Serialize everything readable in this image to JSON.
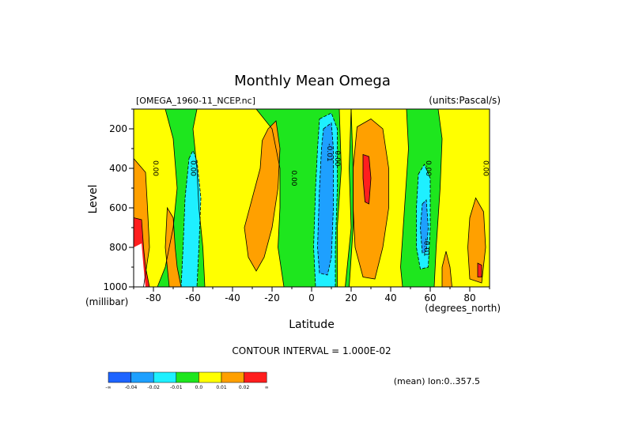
{
  "chart_data": {
    "type": "heatmap",
    "title": "Monthly Mean Omega",
    "file_label": "[OMEGA_1960-11_NCEP.nc]",
    "units_label": "(units:Pascal/s)",
    "xlabel": "Latitude",
    "ylabel": "Level",
    "x_unit_label": "(degrees_north)",
    "y_unit_label": "(millibar)",
    "contour_interval_label": "CONTOUR INTERVAL = 1.000E-02",
    "mean_label": "(mean) lon:0..357.5",
    "xlim": [
      -90,
      90
    ],
    "ylim": [
      1000,
      100
    ],
    "x_ticks": [
      -80,
      -60,
      -40,
      -20,
      0,
      20,
      40,
      60,
      80
    ],
    "x_tick_labels": [
      "-80",
      "-60",
      "-40",
      "-20",
      "0",
      "20",
      "40",
      "60",
      "80"
    ],
    "y_ticks": [
      200,
      400,
      600,
      800,
      1000
    ],
    "y_tick_labels": [
      "200",
      "400",
      "600",
      "800",
      "1000"
    ],
    "contour_labels": [
      {
        "text": "0.00",
        "lat": -80,
        "lev": 400
      },
      {
        "text": "0.00",
        "lat": -61,
        "lev": 400
      },
      {
        "text": "0.00",
        "lat": -10,
        "lev": 450
      },
      {
        "text": "0.00",
        "lat": 12,
        "lev": 350
      },
      {
        "text": "-0.01",
        "lat": 8,
        "lev": 320
      },
      {
        "text": "0.00",
        "lat": 58,
        "lev": 400
      },
      {
        "text": "0.00",
        "lat": 87,
        "lev": 400
      },
      {
        "text": "-0.01",
        "lat": 57,
        "lev": 800
      }
    ],
    "colorbar": {
      "colors": [
        "#1e64ff",
        "#1ea0ff",
        "#1ef0ff",
        "#1ee61e",
        "#ffff00",
        "#ffa000",
        "#ff1e1e"
      ],
      "labels": [
        "-∞",
        "-0.04",
        "-0.02",
        "-0.01",
        "0.0",
        "0.01",
        "0.02",
        "∞"
      ]
    },
    "regions": [
      {
        "color": "#1ee61e",
        "pts": [
          [
            -90,
            100
          ],
          [
            90,
            100
          ],
          [
            90,
            1000
          ],
          [
            -90,
            1000
          ]
        ]
      },
      {
        "color": "#ffff00",
        "pts": [
          [
            -90,
            100
          ],
          [
            -74,
            100
          ],
          [
            -70,
            250
          ],
          [
            -68,
            500
          ],
          [
            -70,
            700
          ],
          [
            -74,
            900
          ],
          [
            -78,
            1000
          ],
          [
            -90,
            1000
          ]
        ]
      },
      {
        "color": "#ffff00",
        "pts": [
          [
            -58,
            100
          ],
          [
            -28,
            100
          ],
          [
            -20,
            200
          ],
          [
            -16,
            400
          ],
          [
            -16,
            600
          ],
          [
            -17,
            800
          ],
          [
            -14,
            1000
          ],
          [
            -54,
            1000
          ],
          [
            -55,
            800
          ],
          [
            -57,
            600
          ],
          [
            -58,
            400
          ],
          [
            -60,
            200
          ]
        ]
      },
      {
        "color": "#ffff00",
        "pts": [
          [
            14,
            100
          ],
          [
            20,
            100
          ],
          [
            19,
            400
          ],
          [
            20,
            700
          ],
          [
            17,
            1000
          ],
          [
            13,
            1000
          ],
          [
            13,
            700
          ],
          [
            15,
            400
          ]
        ]
      },
      {
        "color": "#ffff00",
        "pts": [
          [
            20,
            100
          ],
          [
            48,
            100
          ],
          [
            49,
            300
          ],
          [
            47,
            600
          ],
          [
            45,
            900
          ],
          [
            46,
            1000
          ],
          [
            19,
            1000
          ],
          [
            21,
            700
          ],
          [
            21,
            400
          ]
        ]
      },
      {
        "color": "#ffff00",
        "pts": [
          [
            64,
            100
          ],
          [
            90,
            100
          ],
          [
            90,
            1000
          ],
          [
            62,
            1000
          ],
          [
            63,
            800
          ],
          [
            65,
            500
          ],
          [
            66,
            250
          ]
        ]
      },
      {
        "color": "#ffa000",
        "pts": [
          [
            -90,
            350
          ],
          [
            -84,
            420
          ],
          [
            -83,
            600
          ],
          [
            -82,
            800
          ],
          [
            -85,
            1000
          ],
          [
            -90,
            1000
          ]
        ]
      },
      {
        "color": "#ffa000",
        "pts": [
          [
            -73,
            600
          ],
          [
            -70,
            650
          ],
          [
            -69,
            800
          ],
          [
            -68,
            900
          ],
          [
            -66,
            1000
          ],
          [
            -72,
            1000
          ],
          [
            -74,
            800
          ]
        ]
      },
      {
        "color": "#ffa000",
        "pts": [
          [
            -22,
            200
          ],
          [
            -18,
            160
          ],
          [
            -16,
            300
          ],
          [
            -17,
            500
          ],
          [
            -20,
            700
          ],
          [
            -24,
            850
          ],
          [
            -28,
            920
          ],
          [
            -32,
            850
          ],
          [
            -34,
            700
          ],
          [
            -30,
            550
          ],
          [
            -26,
            400
          ],
          [
            -25,
            260
          ]
        ]
      },
      {
        "color": "#ffa000",
        "pts": [
          [
            23,
            190
          ],
          [
            30,
            150
          ],
          [
            36,
            200
          ],
          [
            39,
            400
          ],
          [
            39,
            600
          ],
          [
            36,
            800
          ],
          [
            32,
            960
          ],
          [
            26,
            950
          ],
          [
            22,
            800
          ],
          [
            21,
            600
          ],
          [
            21,
            400
          ]
        ]
      },
      {
        "color": "#ffa000",
        "pts": [
          [
            83,
            550
          ],
          [
            87,
            620
          ],
          [
            88,
            800
          ],
          [
            86,
            980
          ],
          [
            80,
            960
          ],
          [
            79,
            800
          ],
          [
            80,
            650
          ]
        ]
      },
      {
        "color": "#ffa000",
        "pts": [
          [
            68,
            820
          ],
          [
            70,
            900
          ],
          [
            71,
            1000
          ],
          [
            66,
            1000
          ],
          [
            66,
            900
          ]
        ]
      },
      {
        "color": "#ff1e1e",
        "pts": [
          [
            26,
            330
          ],
          [
            29,
            340
          ],
          [
            30,
            450
          ],
          [
            29,
            580
          ],
          [
            27,
            570
          ],
          [
            26,
            450
          ]
        ]
      },
      {
        "color": "#ff1e1e",
        "pts": [
          [
            -90,
            650
          ],
          [
            -86,
            660
          ],
          [
            -85,
            800
          ],
          [
            -84,
            900
          ],
          [
            -82,
            1000
          ],
          [
            -90,
            1000
          ]
        ]
      },
      {
        "color": "#ff1e1e",
        "pts": [
          [
            84,
            880
          ],
          [
            86,
            890
          ],
          [
            86,
            950
          ],
          [
            84,
            950
          ]
        ]
      },
      {
        "color": "#1ef0ff",
        "pts": [
          [
            -62,
            350
          ],
          [
            -60,
            310
          ],
          [
            -58,
            360
          ],
          [
            -56,
            550
          ],
          [
            -57,
            800
          ],
          [
            -58,
            1000
          ],
          [
            -66,
            1000
          ],
          [
            -65,
            800
          ],
          [
            -64,
            550
          ]
        ]
      },
      {
        "color": "#1ef0ff",
        "pts": [
          [
            4,
            150
          ],
          [
            10,
            120
          ],
          [
            13,
            200
          ],
          [
            13,
            500
          ],
          [
            12,
            800
          ],
          [
            12,
            1000
          ],
          [
            2,
            1000
          ],
          [
            1,
            800
          ],
          [
            2,
            500
          ],
          [
            3,
            300
          ]
        ]
      },
      {
        "color": "#1ef0ff",
        "pts": [
          [
            54,
            430
          ],
          [
            57,
            380
          ],
          [
            60,
            450
          ],
          [
            60,
            700
          ],
          [
            59,
            900
          ],
          [
            55,
            910
          ],
          [
            53,
            800
          ],
          [
            53,
            600
          ]
        ]
      },
      {
        "color": "#1ea0ff",
        "pts": [
          [
            6,
            200
          ],
          [
            10,
            170
          ],
          [
            11,
            300
          ],
          [
            11,
            600
          ],
          [
            10,
            850
          ],
          [
            8,
            940
          ],
          [
            4,
            930
          ],
          [
            3,
            800
          ],
          [
            4,
            500
          ],
          [
            5,
            300
          ]
        ]
      },
      {
        "color": "#1ea0ff",
        "pts": [
          [
            56,
            580
          ],
          [
            58,
            560
          ],
          [
            59,
            700
          ],
          [
            58,
            820
          ],
          [
            56,
            830
          ],
          [
            55,
            700
          ]
        ]
      },
      {
        "color": "#ffffff",
        "pts": [
          [
            -90,
            800
          ],
          [
            -86,
            780
          ],
          [
            -85,
            900
          ],
          [
            -84,
            1000
          ],
          [
            -90,
            1000
          ]
        ]
      }
    ]
  }
}
